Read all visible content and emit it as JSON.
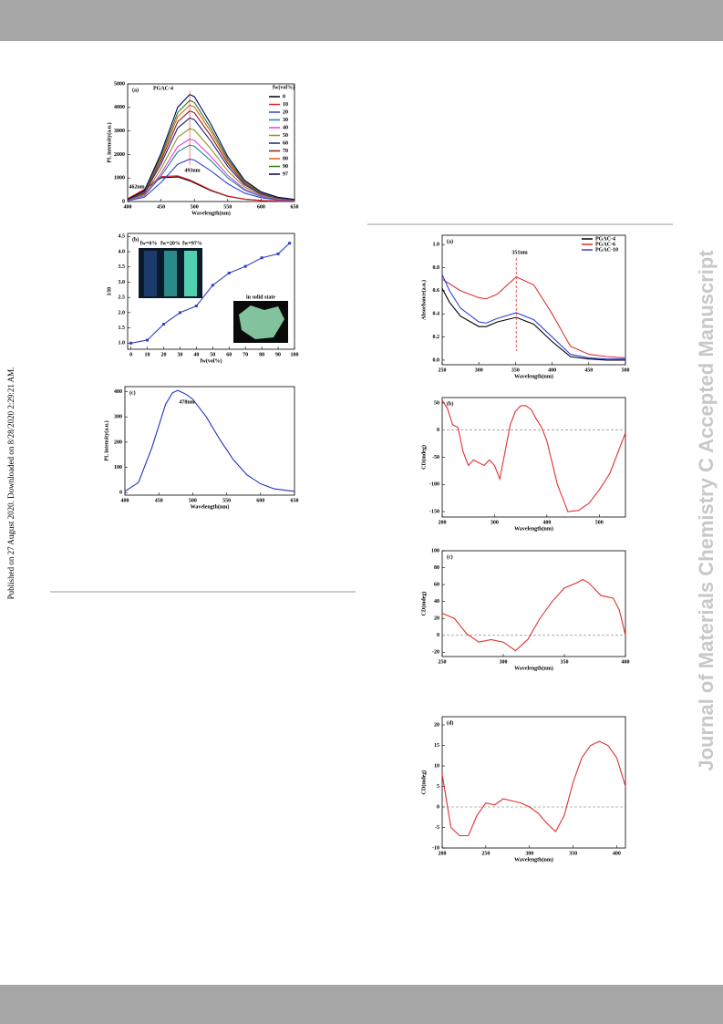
{
  "side_note": "Published on 27 August 2020. Downloaded on 8/28/2020 2:29:21 AM.",
  "watermark": "Journal of Materials Chemistry C Accepted Manuscript",
  "chart_data": [
    {
      "type": "line",
      "panel_label": "(a)",
      "title": "PGAC-4",
      "xlabel": "Wavelength(nm)",
      "ylabel": "PL intensity(a.u.)",
      "legend_title": "fw(vol%)",
      "legend": "upper right",
      "x": [
        400,
        425,
        450,
        475,
        493,
        500,
        525,
        550,
        575,
        600,
        625,
        650
      ],
      "series": [
        {
          "name": "0",
          "color": "#000000",
          "values": [
            110,
            495,
            1012,
            1045,
            880,
            792,
            462,
            220,
            99,
            44,
            22,
            11
          ]
        },
        {
          "name": "10",
          "color": "#e02020",
          "values": [
            115,
            518,
            1058,
            1093,
            920,
            828,
            483,
            230,
            104,
            46,
            23,
            12
          ]
        },
        {
          "name": "20",
          "color": "#3040e0",
          "values": [
            36,
            180,
            810,
            1584,
            1800,
            1764,
            1296,
            756,
            360,
            162,
            72,
            36
          ]
        },
        {
          "name": "30",
          "color": "#1a8a8a",
          "values": [
            48,
            240,
            1080,
            2112,
            2400,
            2352,
            1728,
            1008,
            480,
            216,
            96,
            48
          ]
        },
        {
          "name": "40",
          "color": "#e040e0",
          "values": [
            53,
            265,
            1193,
            2332,
            2650,
            2597,
            1908,
            1113,
            530,
            239,
            106,
            53
          ]
        },
        {
          "name": "50",
          "color": "#909020",
          "values": [
            62,
            310,
            1395,
            2728,
            3100,
            3038,
            2232,
            1302,
            620,
            279,
            124,
            62
          ]
        },
        {
          "name": "60",
          "color": "#202080",
          "values": [
            71,
            355,
            1598,
            3124,
            3550,
            3479,
            2556,
            1491,
            710,
            320,
            142,
            71
          ]
        },
        {
          "name": "70",
          "color": "#802020",
          "values": [
            77,
            385,
            1733,
            3388,
            3850,
            3773,
            2772,
            1617,
            770,
            347,
            154,
            77
          ]
        },
        {
          "name": "80",
          "color": "#e06010",
          "values": [
            82,
            410,
            1845,
            3608,
            4100,
            4018,
            2952,
            1722,
            820,
            369,
            164,
            82
          ]
        },
        {
          "name": "90",
          "color": "#208020",
          "values": [
            86,
            430,
            1935,
            3784,
            4300,
            4214,
            3096,
            1806,
            860,
            387,
            172,
            86
          ]
        },
        {
          "name": "97",
          "color": "#000060",
          "values": [
            91,
            455,
            2048,
            4004,
            4550,
            4459,
            3276,
            1911,
            910,
            410,
            182,
            91
          ]
        }
      ],
      "xlim": [
        400,
        650
      ],
      "ylim": [
        0,
        5000
      ],
      "xticks": [
        400,
        450,
        500,
        550,
        600,
        650
      ],
      "yticks": [
        0,
        1000,
        2000,
        3000,
        4000,
        5000
      ],
      "annotations": [
        "493nm",
        "462nm"
      ]
    },
    {
      "type": "line",
      "markers": true,
      "panel_label": "(b)",
      "xlabel": "fw(vol%)",
      "ylabel": "I/I0",
      "color": "#3040c0",
      "x": [
        0,
        10,
        20,
        30,
        40,
        50,
        60,
        70,
        80,
        90,
        97
      ],
      "values": [
        1.0,
        1.1,
        1.62,
        2.0,
        2.22,
        2.9,
        3.3,
        3.52,
        3.8,
        3.93,
        4.28
      ],
      "xlim": [
        -2,
        100
      ],
      "ylim": [
        0.8,
        4.6
      ],
      "xticks": [
        0,
        10,
        20,
        30,
        40,
        50,
        60,
        70,
        80,
        90,
        100
      ],
      "yticks": [
        {
          "value": 1,
          "label": "1.0"
        },
        1.5,
        {
          "value": 2,
          "label": "2.0"
        },
        2.5,
        {
          "value": 3,
          "label": "3.0"
        },
        3.5,
        {
          "value": 4,
          "label": "4.0"
        },
        4.5
      ],
      "inset_labels": [
        "fw=0%",
        "fw=20%",
        "fw=97%",
        "in solid state"
      ]
    },
    {
      "type": "line",
      "panel_label": "(c)",
      "xlabel": "Wavelength(nm)",
      "ylabel": "PL intensity(a.u.)",
      "color": "#2030c0",
      "x": [
        400,
        420,
        440,
        460,
        470,
        478,
        490,
        500,
        520,
        540,
        560,
        580,
        600,
        620,
        650
      ],
      "values": [
        5,
        40,
        180,
        350,
        395,
        405,
        390,
        370,
        300,
        210,
        130,
        70,
        35,
        15,
        5
      ],
      "xlim": [
        400,
        650
      ],
      "ylim": [
        -10,
        420
      ],
      "xticks": [
        400,
        450,
        500,
        550,
        600,
        650
      ],
      "yticks": [
        0,
        100,
        200,
        300,
        400
      ],
      "annotations": [
        "478nm"
      ]
    },
    {
      "type": "line",
      "panel_label": "(a)",
      "xlabel": "Wavelength(nm)",
      "ylabel": "Absorbance(a.u.)",
      "legend": "upper right",
      "x": [
        250,
        260,
        275,
        300,
        310,
        325,
        351,
        375,
        400,
        425,
        450,
        475,
        500
      ],
      "series": [
        {
          "name": "PGAC-4",
          "color": "#000000",
          "values": [
            0.62,
            0.5,
            0.38,
            0.29,
            0.29,
            0.33,
            0.37,
            0.31,
            0.16,
            0.03,
            0.01,
            0.0,
            0.0
          ]
        },
        {
          "name": "PGAC-6",
          "color": "#e03030",
          "values": [
            0.7,
            0.66,
            0.6,
            0.54,
            0.53,
            0.57,
            0.72,
            0.65,
            0.4,
            0.12,
            0.05,
            0.03,
            0.02
          ]
        },
        {
          "name": "PGAC-10",
          "color": "#3040e0",
          "values": [
            0.74,
            0.6,
            0.45,
            0.33,
            0.32,
            0.36,
            0.41,
            0.35,
            0.2,
            0.05,
            0.02,
            0.01,
            0.01
          ]
        }
      ],
      "xlim": [
        250,
        500
      ],
      "ylim": [
        -0.04,
        1.08
      ],
      "xticks": [
        250,
        300,
        350,
        400,
        450,
        500
      ],
      "yticks": [
        {
          "value": 0,
          "label": "0.0"
        },
        0.2,
        0.4,
        0.6,
        0.8,
        {
          "value": 1,
          "label": "1.0"
        }
      ],
      "annotations": [
        "351nm"
      ]
    },
    {
      "type": "line",
      "panel_label": "(b)",
      "xlabel": "Wavelength(nm)",
      "ylabel": "CD(mdeg)",
      "color": "#e03030",
      "zero_line": true,
      "x": [
        200,
        210,
        220,
        230,
        240,
        250,
        260,
        270,
        280,
        290,
        300,
        310,
        320,
        330,
        340,
        350,
        360,
        370,
        380,
        390,
        400,
        420,
        440,
        460,
        480,
        500,
        520,
        550
      ],
      "values": [
        55,
        40,
        10,
        5,
        -40,
        -65,
        -55,
        -60,
        -65,
        -55,
        -65,
        -90,
        -40,
        10,
        35,
        45,
        45,
        38,
        20,
        5,
        -20,
        -100,
        -150,
        -148,
        -135,
        -110,
        -80,
        -5
      ],
      "xlim": [
        200,
        550
      ],
      "ylim": [
        -160,
        60
      ],
      "xticks": [
        200,
        300,
        400,
        500
      ],
      "yticks": [
        -150,
        -100,
        -50,
        0,
        50
      ]
    },
    {
      "type": "line",
      "panel_label": "(c)",
      "xlabel": "Wavelength(nm)",
      "ylabel": "CD(mdeg)",
      "color": "#e03030",
      "zero_line": true,
      "x": [
        250,
        260,
        270,
        280,
        290,
        300,
        310,
        320,
        330,
        340,
        350,
        360,
        365,
        370,
        380,
        390,
        395,
        400
      ],
      "values": [
        26,
        20,
        2,
        -8,
        -5,
        -8,
        -18,
        -5,
        20,
        40,
        56,
        62,
        66,
        62,
        47,
        44,
        30,
        0
      ],
      "xlim": [
        250,
        400
      ],
      "ylim": [
        -25,
        100
      ],
      "xticks": [
        250,
        300,
        350,
        400
      ],
      "yticks": [
        -20,
        0,
        20,
        40,
        60,
        80,
        100
      ]
    },
    {
      "type": "line",
      "panel_label": "(d)",
      "xlabel": "Wavelength(nm)",
      "ylabel": "CD(mdeg)",
      "color": "#e03030",
      "zero_line": true,
      "x": [
        200,
        210,
        220,
        230,
        240,
        250,
        260,
        270,
        280,
        290,
        300,
        310,
        320,
        330,
        340,
        350,
        360,
        370,
        380,
        390,
        400,
        410
      ],
      "values": [
        8,
        -5,
        -7,
        -7,
        -2,
        1,
        0.5,
        2,
        1.5,
        1,
        0,
        -1.5,
        -4,
        -6,
        -2,
        6,
        12,
        15,
        16,
        15,
        12,
        5
      ],
      "xlim": [
        200,
        410
      ],
      "ylim": [
        -10,
        22
      ],
      "xticks": [
        200,
        250,
        300,
        350,
        400
      ],
      "yticks": [
        -10,
        -5,
        0,
        5,
        10,
        15,
        20
      ]
    }
  ]
}
